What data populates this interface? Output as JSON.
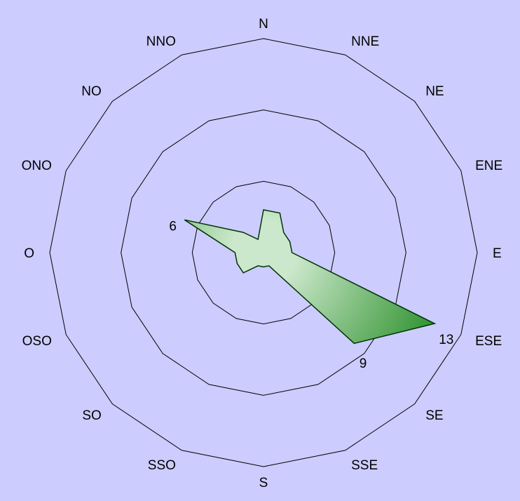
{
  "chart_data": {
    "type": "radar",
    "categories": [
      "N",
      "NNE",
      "NE",
      "ENE",
      "E",
      "ESE",
      "SE",
      "SSE",
      "S",
      "SSO",
      "SO",
      "OSO",
      "O",
      "ONO",
      "NO",
      "NNO"
    ],
    "values": [
      3,
      3,
      2,
      2,
      2,
      13,
      9,
      1,
      1,
      1,
      2,
      2,
      2,
      6,
      2,
      1
    ],
    "rmax": 15,
    "rings": [
      5,
      10,
      15
    ],
    "grid": true,
    "fill_color_center": "#cce8cc",
    "fill_color_edge": "#228b22",
    "outline_color": "#003300",
    "grid_color": "#000000",
    "background": "#ccccff",
    "data_labels": [
      {
        "category": "ESE",
        "text": "13"
      },
      {
        "category": "SE",
        "text": "9"
      },
      {
        "category": "ONO",
        "text": "6"
      }
    ]
  }
}
